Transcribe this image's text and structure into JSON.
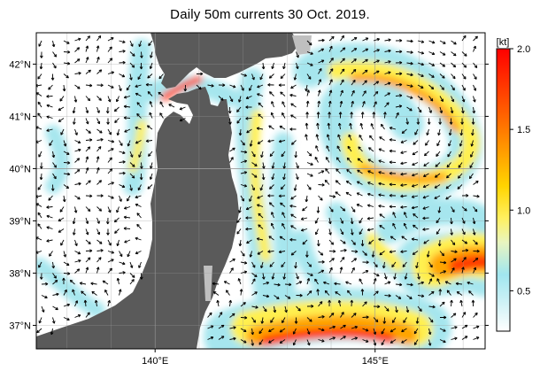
{
  "title": "Daily 50m currents 30 Oct. 2019.",
  "lat_ticks": [
    {
      "lat": 42,
      "label": "42°N"
    },
    {
      "lat": 41,
      "label": "41°N"
    },
    {
      "lat": 40,
      "label": "40°N"
    },
    {
      "lat": 39,
      "label": "39°N"
    },
    {
      "lat": 38,
      "label": "38°N"
    },
    {
      "lat": 37,
      "label": "37°N"
    }
  ],
  "lon_ticks": [
    {
      "lon": 140,
      "label": "140°E"
    },
    {
      "lon": 145,
      "label": "145°E"
    }
  ],
  "map_extent": {
    "lon_min": 137.3,
    "lon_max": 147.5,
    "lat_min": 36.55,
    "lat_max": 42.6
  },
  "colorbar": {
    "unit": "[kt]",
    "min": 0.25,
    "max": 2.0,
    "ticks": [
      {
        "value": 2.0,
        "label": "2.0"
      },
      {
        "value": 1.5,
        "label": "1.5"
      },
      {
        "value": 1.0,
        "label": "1.0"
      },
      {
        "value": 0.5,
        "label": "0.5"
      }
    ],
    "stops": [
      {
        "value": 0.25,
        "color": "#ffffff"
      },
      {
        "value": 0.45,
        "color": "#c8f0f5"
      },
      {
        "value": 0.6,
        "color": "#a0e6ef"
      },
      {
        "value": 0.8,
        "color": "#e8f5c0"
      },
      {
        "value": 0.95,
        "color": "#fff060"
      },
      {
        "value": 1.15,
        "color": "#ffd400"
      },
      {
        "value": 1.35,
        "color": "#ffa000"
      },
      {
        "value": 1.6,
        "color": "#ff6000"
      },
      {
        "value": 2.0,
        "color": "#ff0000"
      }
    ]
  },
  "colors": {
    "land": "#5a5a5a",
    "land_light": "#bfbfbf",
    "ocean": "#ffffff",
    "arrow": "#000000",
    "grid": "#9a9a9a"
  }
}
